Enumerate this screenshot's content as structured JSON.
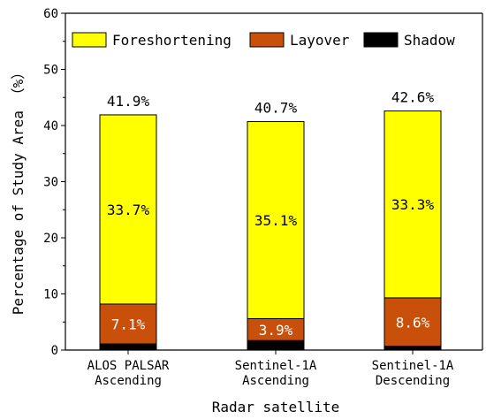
{
  "chart_data": {
    "type": "bar",
    "stacked": true,
    "categories": [
      [
        "ALOS PALSAR",
        "Ascending"
      ],
      [
        "Sentinel-1A",
        "Ascending"
      ],
      [
        "Sentinel-1A",
        "Descending"
      ]
    ],
    "series": [
      {
        "name": "Shadow",
        "color": "#000000",
        "values": [
          1.1,
          1.7,
          0.7
        ]
      },
      {
        "name": "Layover",
        "color": "#c8500a",
        "values": [
          7.1,
          3.9,
          8.6
        ]
      },
      {
        "name": "Foreshortening",
        "color": "#ffff00",
        "values": [
          33.7,
          35.1,
          33.3
        ]
      }
    ],
    "segment_labels": {
      "Layover": [
        "7.1%",
        "3.9%",
        "8.6%"
      ],
      "Foreshortening": [
        "33.7%",
        "35.1%",
        "33.3%"
      ]
    },
    "totals": [
      "41.9%",
      "40.7%",
      "42.6%"
    ],
    "legend_order": [
      "Foreshortening",
      "Layover",
      "Shadow"
    ],
    "legend_position": "top",
    "xlabel": "Radar satellite",
    "ylabel": "Percentage of Study Area （%）",
    "ylim": [
      0,
      60
    ],
    "yticks": [
      0,
      10,
      20,
      30,
      40,
      50,
      60
    ],
    "grid": false
  }
}
